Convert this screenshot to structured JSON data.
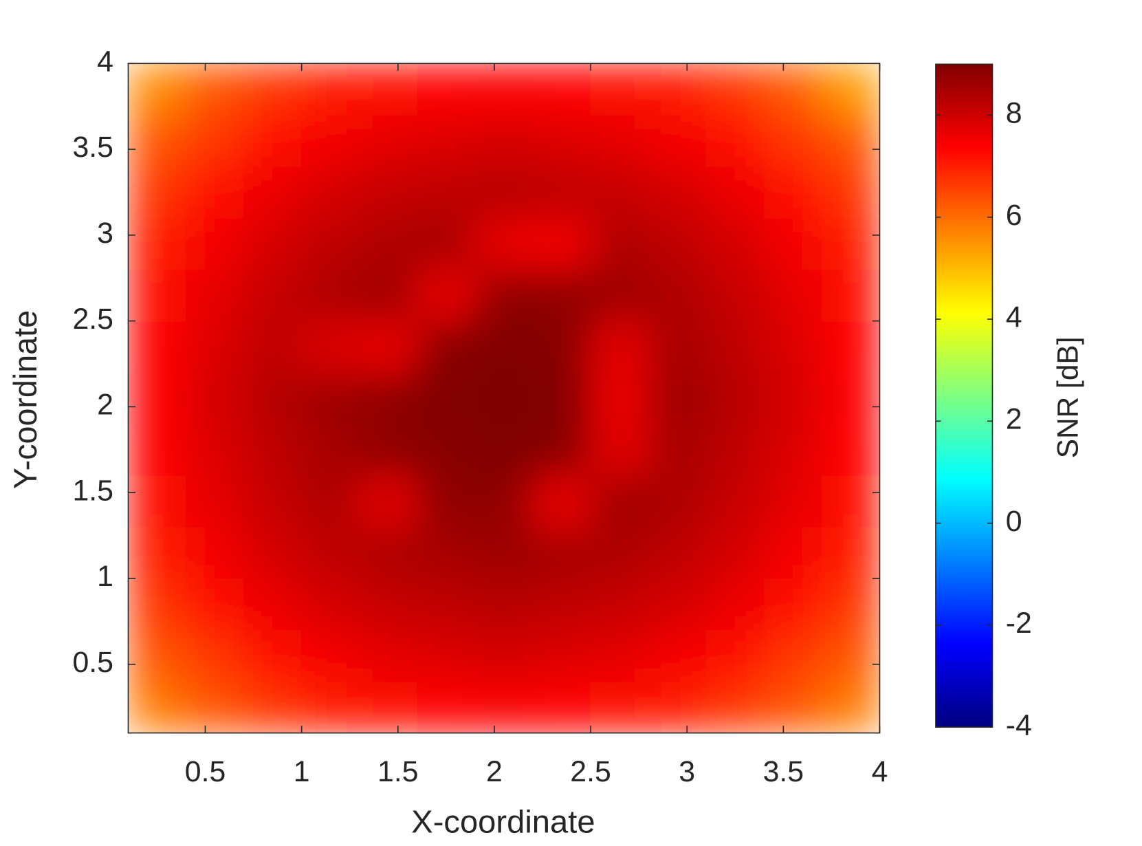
{
  "chart_data": {
    "type": "heatmap",
    "xlabel": "X-coordinate",
    "ylabel": "Y-coordinate",
    "colorbar_label": "SNR [dB]",
    "colormap": "jet",
    "x": [
      0.25,
      0.55,
      0.85,
      1.15,
      1.45,
      1.75,
      2.05,
      2.35,
      2.65,
      2.95,
      3.25,
      3.55,
      3.85
    ],
    "y": [
      0.25,
      0.55,
      0.85,
      1.15,
      1.45,
      1.75,
      2.05,
      2.35,
      2.65,
      2.95,
      3.25,
      3.55,
      3.85
    ],
    "z": [
      [
        5.8,
        6.3,
        6.7,
        7.0,
        7.2,
        7.3,
        7.4,
        7.3,
        7.2,
        7.0,
        6.7,
        6.3,
        5.8
      ],
      [
        6.3,
        6.7,
        7.2,
        7.5,
        7.7,
        7.8,
        7.9,
        7.8,
        7.7,
        7.5,
        7.2,
        6.7,
        6.3
      ],
      [
        6.7,
        7.2,
        7.6,
        7.9,
        8.1,
        8.2,
        8.3,
        8.2,
        8.1,
        7.9,
        7.6,
        7.2,
        6.7
      ],
      [
        7.0,
        7.5,
        7.9,
        8.2,
        8.4,
        8.5,
        8.6,
        8.5,
        8.4,
        8.2,
        7.9,
        7.5,
        7.0
      ],
      [
        7.2,
        7.7,
        8.1,
        8.4,
        7.7,
        8.8,
        8.8,
        7.6,
        8.6,
        8.4,
        8.1,
        7.7,
        7.2
      ],
      [
        7.3,
        7.8,
        8.2,
        8.5,
        8.8,
        8.9,
        9.0,
        8.9,
        7.7,
        8.5,
        8.2,
        7.8,
        7.3
      ],
      [
        7.4,
        7.9,
        8.3,
        8.6,
        8.8,
        9.0,
        9.0,
        9.0,
        7.6,
        8.6,
        8.3,
        7.9,
        7.4
      ],
      [
        7.3,
        7.8,
        8.2,
        7.8,
        7.6,
        8.9,
        9.0,
        8.9,
        7.7,
        8.5,
        8.2,
        7.8,
        7.3
      ],
      [
        7.2,
        7.7,
        8.1,
        8.4,
        8.6,
        7.6,
        8.8,
        8.8,
        8.6,
        8.4,
        8.1,
        7.7,
        7.2
      ],
      [
        7.0,
        7.5,
        7.9,
        8.2,
        8.4,
        8.5,
        7.6,
        7.5,
        8.4,
        8.2,
        7.9,
        7.5,
        7.0
      ],
      [
        6.7,
        7.2,
        7.6,
        7.9,
        8.1,
        8.2,
        8.3,
        8.2,
        8.1,
        7.9,
        7.6,
        7.2,
        6.7
      ],
      [
        6.3,
        6.7,
        7.2,
        7.5,
        7.7,
        7.8,
        7.9,
        7.8,
        7.7,
        7.5,
        7.2,
        6.7,
        6.3
      ],
      [
        5.6,
        6.3,
        6.7,
        7.0,
        7.2,
        7.3,
        7.4,
        7.3,
        7.2,
        7.0,
        6.7,
        6.2,
        5.4
      ]
    ],
    "xlim": [
      0.1,
      4
    ],
    "ylim": [
      0.1,
      4
    ],
    "xticks": [
      0.5,
      1,
      1.5,
      2,
      2.5,
      3,
      3.5,
      4
    ],
    "yticks": [
      0.5,
      1,
      1.5,
      2,
      2.5,
      3,
      3.5,
      4
    ],
    "clim": [
      -4,
      9
    ],
    "cticks": [
      -4,
      -2,
      0,
      2,
      4,
      6,
      8
    ]
  }
}
